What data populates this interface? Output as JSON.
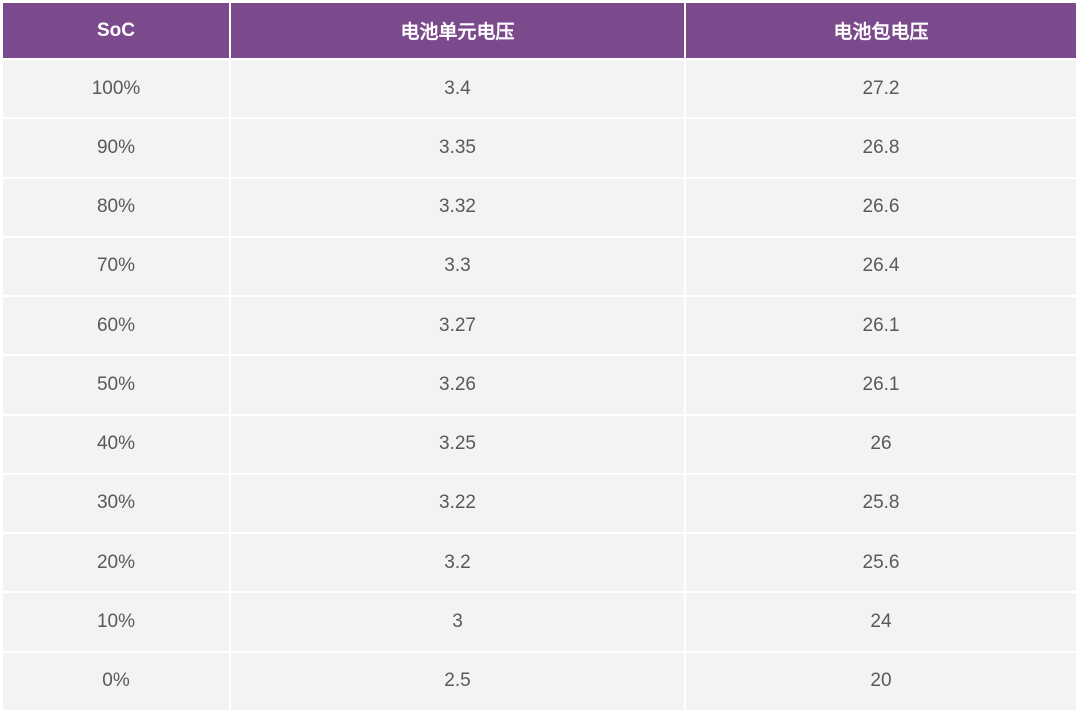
{
  "table": {
    "headers": [
      "SoC",
      "电池单元电压",
      "电池包电压"
    ],
    "rows": [
      [
        "100%",
        "3.4",
        "27.2"
      ],
      [
        "90%",
        "3.35",
        "26.8"
      ],
      [
        "80%",
        "3.32",
        "26.6"
      ],
      [
        "70%",
        "3.3",
        "26.4"
      ],
      [
        "60%",
        "3.27",
        "26.1"
      ],
      [
        "50%",
        "3.26",
        "26.1"
      ],
      [
        "40%",
        "3.25",
        "26"
      ],
      [
        "30%",
        "3.22",
        "25.8"
      ],
      [
        "20%",
        "3.2",
        "25.6"
      ],
      [
        "10%",
        "3",
        "24"
      ],
      [
        "0%",
        "2.5",
        "20"
      ]
    ]
  },
  "colors": {
    "header_bg": "#7b4a8c",
    "header_text": "#ffffff",
    "cell_bg": "#f3f3f3",
    "cell_text": "#595959"
  }
}
